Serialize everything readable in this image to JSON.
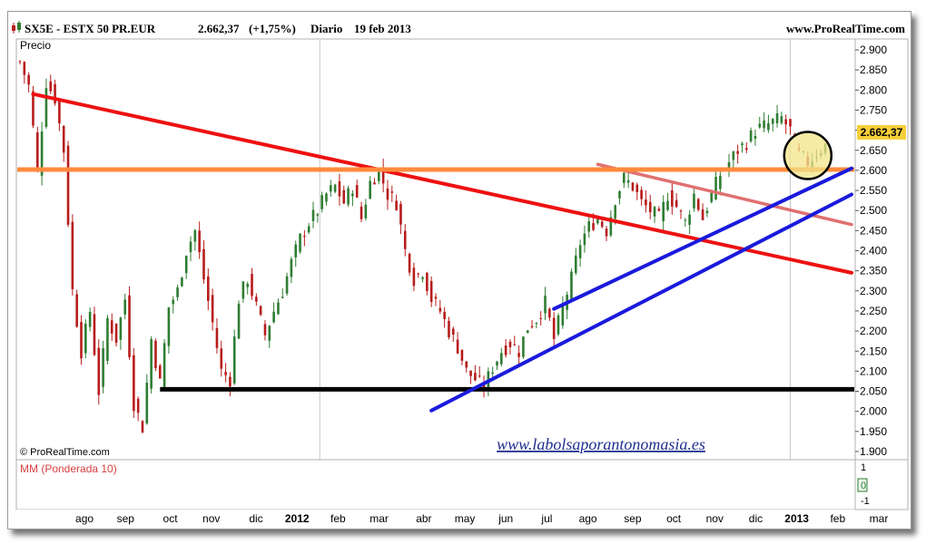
{
  "header": {
    "symbol": "SX5E - ESTX 50 PR.EUR",
    "price": "2.662,37",
    "change": "(+1,75%)",
    "period": "Diario",
    "date": "19 feb 2013",
    "site": "www.ProRealTime.com"
  },
  "price_panel": {
    "label": "Precio",
    "copyright": "© ProRealTime.com",
    "watermark": "www.labolsaporantonomasia.es",
    "last_price_tag": "2.662,37"
  },
  "indicator_panel": {
    "label": "MM (Ponderada 10)",
    "ticks": [
      "1",
      "0",
      "-1"
    ]
  },
  "colors": {
    "up": "#2e7d32",
    "down": "#b71c1c",
    "red_trendline": "#ee1111",
    "pink_trendline": "#e07070",
    "orange_support": "#ff8a3c",
    "blue_trendline": "#1a1adc",
    "black_support": "#000000",
    "highlight_circle": "#f2e48a",
    "price_tag": "#f5cf3a",
    "watermark": "#1f2f8f"
  },
  "chart_data": {
    "type": "candlestick",
    "y_ticks": [
      2900,
      2850,
      2800,
      2750,
      2700,
      2650,
      2600,
      2550,
      2500,
      2450,
      2400,
      2350,
      2300,
      2250,
      2200,
      2150,
      2100,
      2050,
      2000,
      1950,
      1900
    ],
    "y_tick_labels": [
      "2.900",
      "2.850",
      "2.800",
      "2.750",
      "2.700",
      "2.650",
      "2.600",
      "2.550",
      "2.500",
      "2.450",
      "2.400",
      "2.350",
      "2.300",
      "2.250",
      "2.200",
      "2.150",
      "2.100",
      "2.050",
      "2.000",
      "1.950",
      "1.900"
    ],
    "ylim": [
      1880,
      2920
    ],
    "x_labels": [
      "ago",
      "sep",
      "oct",
      "nov",
      "dic",
      "2012",
      "feb",
      "mar",
      "abr",
      "may",
      "jun",
      "jul",
      "ago",
      "sep",
      "oct",
      "nov",
      "dic",
      "2013",
      "feb",
      "mar"
    ],
    "series": [
      {
        "name": "SX5E",
        "price_path": [
          [
            0,
            2870
          ],
          [
            2,
            2810
          ],
          [
            4,
            2600
          ],
          [
            6,
            2820
          ],
          [
            8,
            2780
          ],
          [
            10,
            2650
          ],
          [
            12,
            2300
          ],
          [
            14,
            2150
          ],
          [
            16,
            2250
          ],
          [
            18,
            2050
          ],
          [
            20,
            2230
          ],
          [
            22,
            2180
          ],
          [
            24,
            2280
          ],
          [
            26,
            2020
          ],
          [
            28,
            1960
          ],
          [
            30,
            2180
          ],
          [
            32,
            2070
          ],
          [
            34,
            2260
          ],
          [
            36,
            2300
          ],
          [
            38,
            2400
          ],
          [
            40,
            2450
          ],
          [
            42,
            2330
          ],
          [
            44,
            2220
          ],
          [
            46,
            2100
          ],
          [
            48,
            2080
          ],
          [
            50,
            2280
          ],
          [
            52,
            2330
          ],
          [
            54,
            2260
          ],
          [
            56,
            2190
          ],
          [
            58,
            2250
          ],
          [
            60,
            2300
          ],
          [
            62,
            2370
          ],
          [
            64,
            2430
          ],
          [
            66,
            2470
          ],
          [
            68,
            2500
          ],
          [
            70,
            2540
          ],
          [
            72,
            2560
          ],
          [
            74,
            2520
          ],
          [
            76,
            2560
          ],
          [
            78,
            2480
          ],
          [
            80,
            2570
          ],
          [
            82,
            2600
          ],
          [
            84,
            2540
          ],
          [
            86,
            2520
          ],
          [
            88,
            2400
          ],
          [
            90,
            2330
          ],
          [
            92,
            2350
          ],
          [
            94,
            2280
          ],
          [
            96,
            2250
          ],
          [
            98,
            2200
          ],
          [
            100,
            2160
          ],
          [
            102,
            2100
          ],
          [
            104,
            2080
          ],
          [
            106,
            2060
          ],
          [
            108,
            2110
          ],
          [
            110,
            2150
          ],
          [
            112,
            2170
          ],
          [
            114,
            2150
          ],
          [
            116,
            2210
          ],
          [
            118,
            2230
          ],
          [
            120,
            2270
          ],
          [
            122,
            2180
          ],
          [
            124,
            2260
          ],
          [
            126,
            2330
          ],
          [
            128,
            2420
          ],
          [
            130,
            2460
          ],
          [
            132,
            2480
          ],
          [
            134,
            2450
          ],
          [
            136,
            2530
          ],
          [
            138,
            2580
          ],
          [
            140,
            2560
          ],
          [
            142,
            2520
          ],
          [
            144,
            2500
          ],
          [
            146,
            2480
          ],
          [
            148,
            2540
          ],
          [
            150,
            2510
          ],
          [
            152,
            2470
          ],
          [
            154,
            2540
          ],
          [
            156,
            2480
          ],
          [
            158,
            2540
          ],
          [
            160,
            2590
          ],
          [
            162,
            2620
          ],
          [
            164,
            2650
          ],
          [
            166,
            2670
          ],
          [
            168,
            2700
          ],
          [
            170,
            2710
          ],
          [
            172,
            2720
          ],
          [
            174,
            2730
          ],
          [
            176,
            2700
          ],
          [
            178,
            2640
          ],
          [
            180,
            2620
          ],
          [
            182,
            2645
          ],
          [
            184,
            2662
          ]
        ]
      }
    ],
    "annotations": [
      {
        "kind": "trendline",
        "color": "red",
        "from": [
          3,
          2790
        ],
        "to": [
          190,
          2345
        ]
      },
      {
        "kind": "trendline",
        "color": "pink",
        "from": [
          132,
          2615
        ],
        "to": [
          190,
          2465
        ]
      },
      {
        "kind": "horizontal",
        "color": "orange",
        "y": 2602
      },
      {
        "kind": "horizontal",
        "color": "black",
        "y": 2055,
        "from_x": 32
      },
      {
        "kind": "trendline",
        "color": "blue",
        "from": [
          94,
          2002
        ],
        "to": [
          190,
          2540
        ]
      },
      {
        "kind": "trendline",
        "color": "blue",
        "from": [
          122,
          2255
        ],
        "to": [
          190,
          2605
        ]
      },
      {
        "kind": "circle",
        "color": "yellow",
        "center": [
          180,
          2637
        ]
      }
    ]
  }
}
